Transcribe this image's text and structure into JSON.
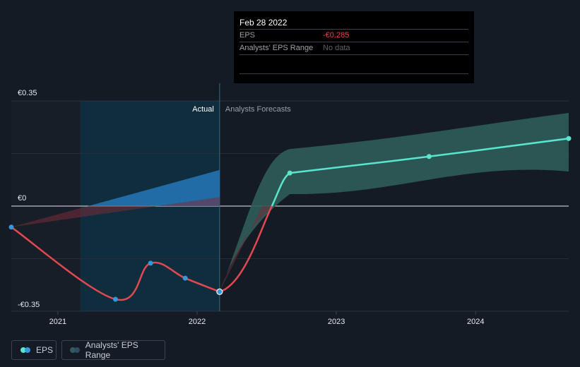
{
  "colors": {
    "background": "#151b24",
    "eps_line": "#e34850",
    "forecast_line": "#5ae5cf",
    "forecast_band": "#2f5d5a",
    "actual_region": "#0e3445",
    "historic_point": "#3598dc",
    "tooltip_value": "#e8474d"
  },
  "tooltip": {
    "date": "Feb 28 2022",
    "eps_label": "EPS",
    "eps_value": "-€0.285",
    "range_label": "Analysts' EPS Range",
    "range_value": "No data"
  },
  "legend": {
    "eps": "EPS",
    "range": "Analysts' EPS Range"
  },
  "chart_data": {
    "type": "line",
    "y_tick_labels": [
      "€0.35",
      "€0",
      "-€0.35"
    ],
    "x_tick_labels": [
      "2021",
      "2022",
      "2023",
      "2024"
    ],
    "region_labels": {
      "actual": "Actual",
      "forecast": "Analysts Forecasts"
    },
    "ylim": [
      -0.35,
      0.35
    ],
    "xlim": [
      "2020-08-31",
      "2024-08-31"
    ],
    "grid": true,
    "legend_position": "bottom-left",
    "divider_date": "2022-02-28",
    "actual_region_start": "2021-02-28",
    "eps_actual": [
      {
        "x": "2020-08-31",
        "y": -0.07
      },
      {
        "x": "2021-05-31",
        "y": -0.31
      },
      {
        "x": "2021-08-31",
        "y": -0.19
      },
      {
        "x": "2021-11-30",
        "y": -0.24
      },
      {
        "x": "2022-02-28",
        "y": -0.285
      }
    ],
    "eps_forecast": [
      {
        "x": "2022-08-31",
        "y": 0.11
      },
      {
        "x": "2023-08-31",
        "y": 0.165
      },
      {
        "x": "2024-08-31",
        "y": 0.225
      }
    ],
    "forecast_range_high": [
      {
        "x": "2022-08-31",
        "y": 0.19
      },
      {
        "x": "2024-08-31",
        "y": 0.31
      }
    ],
    "forecast_range_low": [
      {
        "x": "2022-08-31",
        "y": 0.04
      },
      {
        "x": "2024-08-31",
        "y": 0.115
      }
    ],
    "historic_range": {
      "start": {
        "x": "2020-08-31",
        "y": -0.07
      },
      "end_high": {
        "x": "2022-02-28",
        "y": 0.12
      },
      "end_low": {
        "x": "2022-02-28",
        "y": 0.03
      }
    }
  }
}
